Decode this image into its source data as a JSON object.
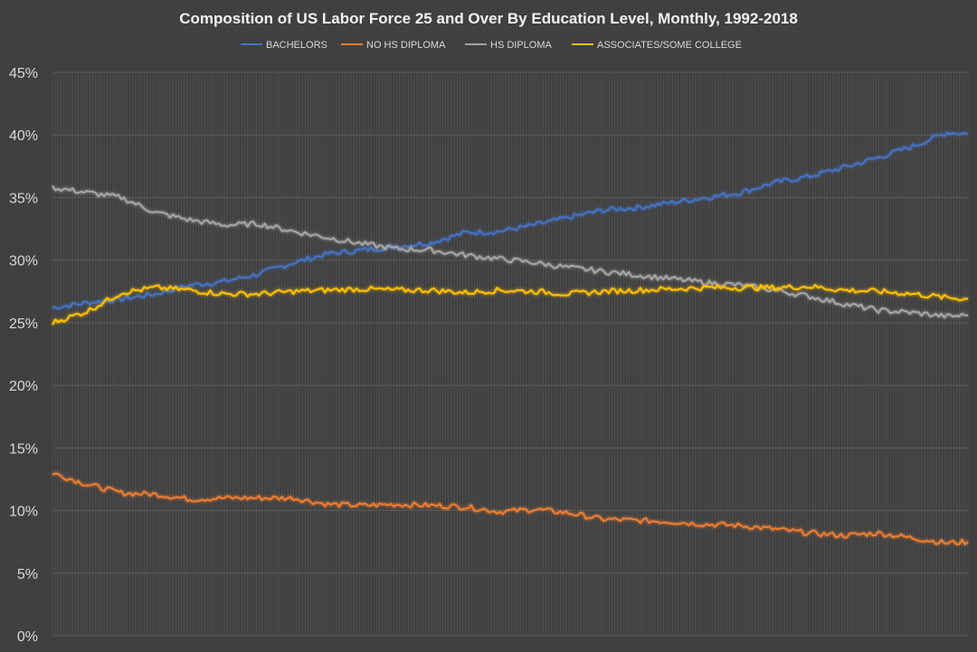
{
  "chart_data": {
    "type": "line",
    "title": "Composition of US Labor Force 25 and Over By Education Level, Monthly, 1992-2018",
    "xlabel": "",
    "ylabel": "",
    "ylim": [
      0,
      45
    ],
    "yticks": [
      0,
      5,
      10,
      15,
      20,
      25,
      30,
      35,
      40,
      45
    ],
    "ytick_labels": [
      "0%",
      "5%",
      "10%",
      "15%",
      "20%",
      "25%",
      "30%",
      "35%",
      "40%",
      "45%"
    ],
    "x_range": [
      1992,
      2018.6
    ],
    "grid": true,
    "legend_position": "top",
    "series": [
      {
        "name": "BACHELORS",
        "color": "#4472c4",
        "x": [
          1992.0,
          1993.0,
          1994.0,
          1995.0,
          1996.0,
          1997.0,
          1998.0,
          1999.0,
          2000.0,
          2001.0,
          2002.0,
          2003.0,
          2004.0,
          2005.0,
          2006.0,
          2007.0,
          2008.0,
          2009.0,
          2010.0,
          2011.0,
          2012.0,
          2013.0,
          2014.0,
          2015.0,
          2016.0,
          2017.0,
          2018.0,
          2018.6
        ],
        "values": [
          26.2,
          26.6,
          26.9,
          27.3,
          28.0,
          28.3,
          28.9,
          29.8,
          30.5,
          30.8,
          31.1,
          31.4,
          32.2,
          32.3,
          32.8,
          33.4,
          34.0,
          34.2,
          34.6,
          35.0,
          35.4,
          36.2,
          36.7,
          37.4,
          38.2,
          39.1,
          40.2,
          40.1
        ]
      },
      {
        "name": "NO HS DIPLOMA",
        "color": "#ed7d31",
        "x": [
          1992.0,
          1993.0,
          1994.0,
          1995.0,
          1996.0,
          1997.0,
          1998.0,
          1999.0,
          2000.0,
          2001.0,
          2002.0,
          2003.0,
          2004.0,
          2005.0,
          2006.0,
          2007.0,
          2008.0,
          2009.0,
          2010.0,
          2011.0,
          2012.0,
          2013.0,
          2014.0,
          2015.0,
          2016.0,
          2017.0,
          2018.0,
          2018.6
        ],
        "values": [
          13.0,
          12.1,
          11.4,
          11.3,
          10.9,
          11.0,
          11.0,
          11.0,
          10.5,
          10.4,
          10.5,
          10.4,
          10.3,
          9.9,
          10.1,
          9.8,
          9.3,
          9.2,
          9.1,
          8.9,
          8.8,
          8.5,
          8.2,
          8.0,
          8.2,
          7.8,
          7.4,
          7.5
        ]
      },
      {
        "name": "HS DIPLOMA",
        "color": "#a5a5a5",
        "x": [
          1992.0,
          1993.0,
          1994.0,
          1995.0,
          1996.0,
          1997.0,
          1998.0,
          1999.0,
          2000.0,
          2001.0,
          2002.0,
          2003.0,
          2004.0,
          2005.0,
          2006.0,
          2007.0,
          2008.0,
          2009.0,
          2010.0,
          2011.0,
          2012.0,
          2013.0,
          2014.0,
          2015.0,
          2016.0,
          2017.0,
          2018.0,
          2018.6
        ],
        "values": [
          35.8,
          35.4,
          35.0,
          33.8,
          33.2,
          32.8,
          32.9,
          32.3,
          31.8,
          31.3,
          30.9,
          30.8,
          30.4,
          30.1,
          29.8,
          29.4,
          29.1,
          28.8,
          28.5,
          28.2,
          28.0,
          27.6,
          27.1,
          26.5,
          26.0,
          25.8,
          25.5,
          25.6
        ]
      },
      {
        "name": "ASSOCIATES/SOME COLLEGE",
        "color": "#ffc000",
        "x": [
          1992.0,
          1993.0,
          1994.0,
          1995.0,
          1996.0,
          1997.0,
          1998.0,
          1999.0,
          2000.0,
          2001.0,
          2002.0,
          2003.0,
          2004.0,
          2005.0,
          2006.0,
          2007.0,
          2008.0,
          2009.0,
          2010.0,
          2011.0,
          2012.0,
          2013.0,
          2014.0,
          2015.0,
          2016.0,
          2017.0,
          2018.0,
          2018.6
        ],
        "values": [
          25.0,
          25.9,
          27.4,
          27.8,
          27.6,
          27.3,
          27.3,
          27.5,
          27.6,
          27.7,
          27.6,
          27.6,
          27.4,
          27.6,
          27.5,
          27.3,
          27.5,
          27.6,
          27.7,
          27.8,
          27.8,
          27.8,
          27.9,
          27.6,
          27.5,
          27.3,
          27.0,
          26.9
        ]
      }
    ]
  }
}
